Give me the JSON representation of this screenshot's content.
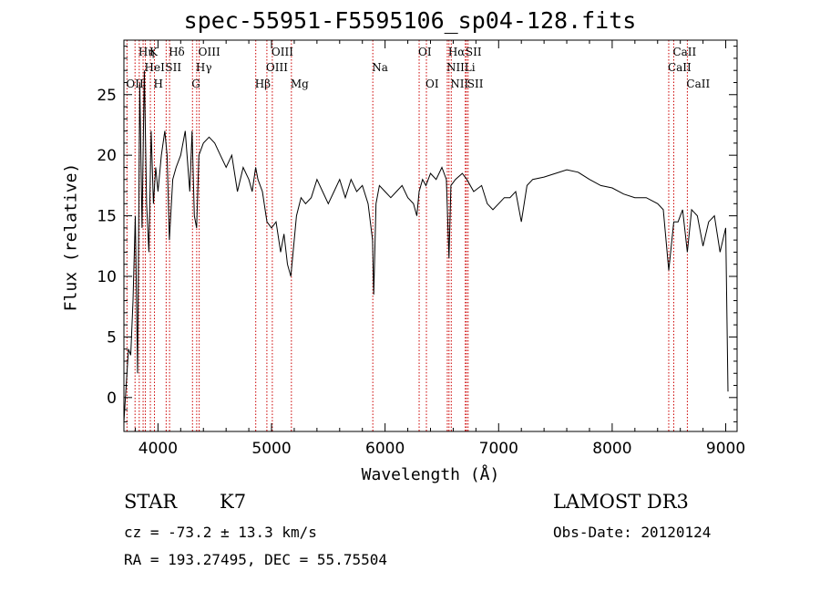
{
  "chart_data": {
    "type": "line",
    "title": "spec-55951-F5595106_sp04-128.fits",
    "xlabel": "Wavelength (Å)",
    "ylabel": "Flux (relative)",
    "xlim": [
      3700,
      9100
    ],
    "ylim": [
      -2.8,
      29.5
    ],
    "xticks": [
      4000,
      5000,
      6000,
      7000,
      8000,
      9000
    ],
    "yticks": [
      0,
      5,
      10,
      15,
      20,
      25
    ],
    "series": [
      {
        "name": "flux",
        "x": [
          3700,
          3720,
          3740,
          3760,
          3780,
          3800,
          3820,
          3840,
          3860,
          3880,
          3900,
          3920,
          3940,
          3960,
          3980,
          4000,
          4030,
          4060,
          4080,
          4100,
          4130,
          4160,
          4200,
          4240,
          4280,
          4300,
          4320,
          4340,
          4360,
          4400,
          4450,
          4500,
          4550,
          4600,
          4650,
          4700,
          4750,
          4800,
          4830,
          4860,
          4880,
          4920,
          4960,
          5000,
          5040,
          5080,
          5110,
          5140,
          5170,
          5190,
          5220,
          5260,
          5300,
          5350,
          5400,
          5450,
          5500,
          5550,
          5600,
          5650,
          5700,
          5750,
          5800,
          5850,
          5890,
          5900,
          5920,
          5950,
          6000,
          6050,
          6100,
          6150,
          6200,
          6250,
          6280,
          6300,
          6330,
          6360,
          6400,
          6450,
          6500,
          6540,
          6563,
          6580,
          6620,
          6680,
          6720,
          6780,
          6850,
          6900,
          6950,
          7000,
          7050,
          7100,
          7150,
          7200,
          7250,
          7300,
          7400,
          7500,
          7600,
          7700,
          7800,
          7900,
          8000,
          8100,
          8200,
          8300,
          8400,
          8450,
          8498,
          8542,
          8580,
          8620,
          8662,
          8700,
          8750,
          8800,
          8850,
          8900,
          8950,
          9000,
          9020
        ],
        "values": [
          -2.0,
          1.0,
          4.0,
          3.5,
          8.0,
          15.0,
          2.0,
          26.0,
          14.0,
          27.0,
          16.0,
          12.0,
          22.0,
          16.0,
          19.0,
          17.0,
          20.0,
          22.0,
          20.0,
          13.0,
          18.0,
          19.0,
          20.0,
          22.0,
          17.0,
          22.0,
          15.0,
          14.0,
          20.0,
          21.0,
          21.5,
          21.0,
          20.0,
          19.0,
          20.0,
          17.0,
          19.0,
          18.0,
          17.0,
          19.0,
          18.0,
          17.0,
          14.5,
          14.0,
          14.5,
          12.0,
          13.5,
          11.0,
          10.0,
          12.0,
          15.0,
          16.5,
          16.0,
          16.5,
          18.0,
          17.0,
          16.0,
          17.0,
          18.0,
          16.5,
          18.0,
          17.0,
          17.5,
          16.0,
          13.0,
          8.5,
          16.0,
          17.5,
          17.0,
          16.5,
          17.0,
          17.5,
          16.5,
          16.0,
          15.0,
          17.0,
          18.0,
          17.5,
          18.5,
          18.0,
          19.0,
          18.0,
          11.5,
          17.5,
          18.0,
          18.5,
          18.0,
          17.0,
          17.5,
          16.0,
          15.5,
          16.0,
          16.5,
          16.5,
          17.0,
          14.5,
          17.5,
          18.0,
          18.2,
          18.5,
          18.8,
          18.6,
          18.0,
          17.5,
          17.3,
          16.8,
          16.5,
          16.5,
          16.0,
          15.5,
          10.5,
          14.5,
          14.5,
          15.5,
          12.0,
          15.5,
          15.0,
          12.5,
          14.5,
          15.0,
          12.0,
          14.0,
          0.5
        ]
      }
    ],
    "lines": [
      {
        "wave": 3727,
        "label": "OII",
        "row": 3,
        "align": "left"
      },
      {
        "wave": 3798,
        "label": "",
        "row": 0,
        "align": "left"
      },
      {
        "wave": 3835,
        "label": "Hη",
        "row": 1,
        "align": "left"
      },
      {
        "wave": 3869,
        "label": "",
        "row": 0,
        "align": "left"
      },
      {
        "wave": 3889,
        "label": "HeI",
        "row": 2,
        "align": "left"
      },
      {
        "wave": 3933,
        "label": "K",
        "row": 1,
        "align": "left"
      },
      {
        "wave": 3969,
        "label": "H",
        "row": 3,
        "align": "left"
      },
      {
        "wave": 4072,
        "label": "SII",
        "row": 2,
        "align": "left"
      },
      {
        "wave": 4102,
        "label": "Hδ",
        "row": 1,
        "align": "left"
      },
      {
        "wave": 4304,
        "label": "G",
        "row": 3,
        "align": "left"
      },
      {
        "wave": 4341,
        "label": "Hγ",
        "row": 2,
        "align": "left"
      },
      {
        "wave": 4363,
        "label": "OIII",
        "row": 1,
        "align": "left"
      },
      {
        "wave": 4861,
        "label": "Hβ",
        "row": 3,
        "align": "left"
      },
      {
        "wave": 4959,
        "label": "OIII",
        "row": 2,
        "align": "left"
      },
      {
        "wave": 5007,
        "label": "OIII",
        "row": 1,
        "align": "left"
      },
      {
        "wave": 5175,
        "label": "Mg",
        "row": 3,
        "align": "left"
      },
      {
        "wave": 5892,
        "label": "Na",
        "row": 2,
        "align": "left"
      },
      {
        "wave": 6300,
        "label": "OI",
        "row": 1,
        "align": "left"
      },
      {
        "wave": 6364,
        "label": "OI",
        "row": 3,
        "align": "left"
      },
      {
        "wave": 6548,
        "label": "NII",
        "row": 2,
        "align": "left"
      },
      {
        "wave": 6563,
        "label": "Hα",
        "row": 1,
        "align": "left"
      },
      {
        "wave": 6583,
        "label": "NII",
        "row": 3,
        "align": "left"
      },
      {
        "wave": 6707,
        "label": "Li",
        "row": 2,
        "align": "left"
      },
      {
        "wave": 6716,
        "label": "SII",
        "row": 1,
        "align": "left"
      },
      {
        "wave": 6731,
        "label": "SII",
        "row": 3,
        "align": "left"
      },
      {
        "wave": 8498,
        "label": "CaII",
        "row": 2,
        "align": "left"
      },
      {
        "wave": 8542,
        "label": "CaII",
        "row": 1,
        "align": "left"
      },
      {
        "wave": 8662,
        "label": "CaII",
        "row": 3,
        "align": "left"
      }
    ],
    "annotations": {
      "class": "STAR",
      "subclass": "K7",
      "survey": "LAMOST DR3",
      "cz": "cz = -73.2 ± 13.3 km/s",
      "obs_date": "Obs-Date: 20120124",
      "coords": "RA = 193.27495, DEC =  55.75504"
    },
    "colors": {
      "axis": "#000000",
      "spectrum": "#000000",
      "lines": "#cc0000"
    }
  }
}
